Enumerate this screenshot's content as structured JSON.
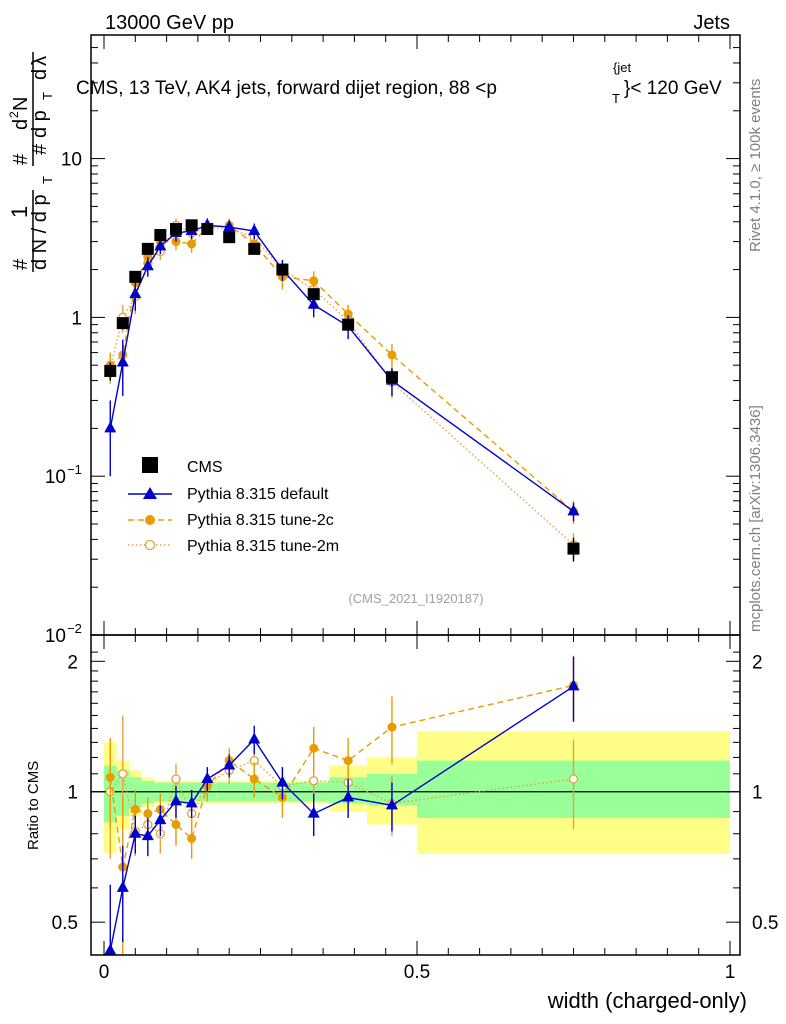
{
  "header": {
    "left": "13000 GeV pp",
    "right": "Jets"
  },
  "side_labels": {
    "rivet": "Rivet 4.1.0, ≥ 100k events",
    "mcplots": "mcplots.cern.ch [arXiv:1306.3436]"
  },
  "colors": {
    "cms": "#000000",
    "default": "#0000cc",
    "tune2c": "#e89c00",
    "tune2m": "#e8a040",
    "band_inner": "#99ff99",
    "band_outer": "#ffff88"
  },
  "chart_data": [
    {
      "type": "scatter",
      "panel": "main",
      "title": "CMS, 13 TeV, AK4 jets, forward dijet region, 88 <p_T^{jet}< 120 GeV",
      "title_parts": {
        "main": "CMS, 13 TeV, AK4 jets, forward dijet region, 88 <p",
        "sub": "T",
        "sup": "{jet",
        "tail": "}< 120 GeV"
      },
      "ylabel": "1/dN/dpT dN²/dpT dλ",
      "ylabel_parts": {
        "hash1": "#",
        "one": "1",
        "dN": "d N / d p",
        "T1": "T",
        "hash2": "#",
        "d2N": "d",
        "two": "2",
        "N": "N",
        "hash3": "#",
        "dpT": "d p",
        "T2": "T",
        "dl": "d",
        "lam": "λ"
      },
      "yscale": "log",
      "ylim": [
        0.01,
        60
      ],
      "xlim": [
        -0.02,
        1.0
      ],
      "yticks": [
        {
          "v": 0.01,
          "label": "10",
          "exp": "−2"
        },
        {
          "v": 0.1,
          "label": "10",
          "exp": "−1"
        },
        {
          "v": 1,
          "label": "1",
          "exp": ""
        },
        {
          "v": 10,
          "label": "10",
          "exp": ""
        }
      ],
      "watermark": "(CMS_2021_I1920187)",
      "legend_position": "lower-left",
      "series": [
        {
          "name": "CMS",
          "marker": "square",
          "x": [
            0.01,
            0.03,
            0.05,
            0.07,
            0.09,
            0.115,
            0.14,
            0.165,
            0.2,
            0.24,
            0.285,
            0.335,
            0.39,
            0.46,
            0.75
          ],
          "y": [
            0.46,
            0.92,
            1.8,
            2.7,
            3.3,
            3.6,
            3.8,
            3.6,
            3.2,
            2.7,
            2.0,
            1.4,
            0.9,
            0.42,
            0.035
          ],
          "yerr": [
            0.06,
            0.08,
            0.1,
            0.1,
            0.1,
            0.1,
            0.1,
            0.1,
            0.1,
            0.1,
            0.1,
            0.08,
            0.06,
            0.05,
            0.006
          ]
        },
        {
          "name": "Pythia 8.315 default",
          "marker": "triangle",
          "x": [
            0.01,
            0.03,
            0.05,
            0.07,
            0.09,
            0.115,
            0.14,
            0.165,
            0.2,
            0.24,
            0.285,
            0.335,
            0.39,
            0.46,
            0.75
          ],
          "y": [
            0.2,
            0.52,
            1.4,
            2.1,
            2.8,
            3.4,
            3.5,
            3.8,
            3.7,
            3.5,
            2.0,
            1.2,
            0.88,
            0.4,
            0.06
          ],
          "yerr": [
            0.1,
            0.2,
            0.3,
            0.3,
            0.3,
            0.4,
            0.4,
            0.4,
            0.4,
            0.4,
            0.3,
            0.2,
            0.15,
            0.08,
            0.008
          ]
        },
        {
          "name": "Pythia 8.315 tune-2c",
          "marker": "circle",
          "x": [
            0.01,
            0.03,
            0.05,
            0.07,
            0.09,
            0.115,
            0.14,
            0.165,
            0.2,
            0.24,
            0.285,
            0.335,
            0.39,
            0.46,
            0.75
          ],
          "y": [
            0.5,
            0.58,
            1.65,
            2.4,
            3.0,
            3.0,
            2.9,
            3.7,
            3.8,
            2.9,
            1.8,
            1.7,
            1.05,
            0.58,
            0.06
          ],
          "yerr": [
            0.1,
            0.15,
            0.3,
            0.3,
            0.3,
            0.35,
            0.35,
            0.4,
            0.4,
            0.35,
            0.3,
            0.25,
            0.15,
            0.1,
            0.01
          ]
        },
        {
          "name": "Pythia 8.315 tune-2m",
          "marker": "open-circle",
          "x": [
            0.01,
            0.03,
            0.05,
            0.07,
            0.09,
            0.115,
            0.14,
            0.165,
            0.2,
            0.24,
            0.285,
            0.335,
            0.39,
            0.46,
            0.75
          ],
          "y": [
            0.48,
            1.0,
            1.35,
            2.2,
            2.6,
            3.8,
            3.4,
            3.7,
            3.6,
            3.2,
            2.0,
            1.5,
            0.95,
            0.39,
            0.037
          ],
          "yerr": [
            0.1,
            0.2,
            0.3,
            0.3,
            0.3,
            0.4,
            0.4,
            0.4,
            0.4,
            0.35,
            0.3,
            0.2,
            0.15,
            0.08,
            0.007
          ]
        }
      ]
    },
    {
      "type": "scatter",
      "panel": "ratio",
      "xlabel": "width (charged-only)",
      "ylabel": "Ratio to CMS",
      "yscale": "log",
      "ylim": [
        0.42,
        2.3
      ],
      "yticks": [
        {
          "v": 0.5,
          "label": "0.5"
        },
        {
          "v": 1,
          "label": "1"
        },
        {
          "v": 2,
          "label": "2"
        }
      ],
      "xticks": [
        {
          "v": 0,
          "label": "0"
        },
        {
          "v": 0.5,
          "label": "0.5"
        },
        {
          "v": 1,
          "label": "1"
        }
      ],
      "bands": {
        "edges": [
          0.0,
          0.02,
          0.04,
          0.06,
          0.08,
          0.1,
          0.13,
          0.15,
          0.18,
          0.22,
          0.26,
          0.31,
          0.36,
          0.42,
          0.5,
          1.0
        ],
        "inner_lo": [
          0.85,
          0.88,
          0.92,
          0.94,
          0.95,
          0.95,
          0.95,
          0.95,
          0.95,
          0.95,
          0.95,
          0.95,
          0.94,
          0.93,
          0.87
        ],
        "inner_hi": [
          1.15,
          1.12,
          1.08,
          1.06,
          1.05,
          1.05,
          1.05,
          1.05,
          1.05,
          1.05,
          1.05,
          1.05,
          1.08,
          1.1,
          1.18
        ],
        "outer_lo": [
          0.72,
          0.82,
          0.88,
          0.92,
          0.94,
          0.94,
          0.94,
          0.94,
          0.94,
          0.94,
          0.94,
          0.94,
          0.9,
          0.84,
          0.72
        ],
        "outer_hi": [
          1.3,
          1.18,
          1.12,
          1.08,
          1.06,
          1.06,
          1.06,
          1.06,
          1.06,
          1.06,
          1.06,
          1.06,
          1.15,
          1.2,
          1.38
        ]
      },
      "series": [
        {
          "name": "Pythia 8.315 default",
          "x": [
            0.01,
            0.03,
            0.05,
            0.07,
            0.09,
            0.115,
            0.14,
            0.165,
            0.2,
            0.24,
            0.285,
            0.335,
            0.39,
            0.46,
            0.75
          ],
          "y": [
            0.43,
            0.6,
            0.8,
            0.79,
            0.86,
            0.95,
            0.94,
            1.07,
            1.15,
            1.32,
            1.05,
            0.89,
            0.97,
            0.93,
            1.75
          ],
          "yerr": [
            0.18,
            0.15,
            0.08,
            0.08,
            0.07,
            0.08,
            0.07,
            0.07,
            0.07,
            0.1,
            0.09,
            0.1,
            0.1,
            0.12,
            0.3
          ]
        },
        {
          "name": "Pythia 8.315 tune-2c",
          "x": [
            0.01,
            0.03,
            0.05,
            0.07,
            0.09,
            0.115,
            0.14,
            0.165,
            0.2,
            0.24,
            0.285,
            0.335,
            0.39,
            0.46,
            0.75
          ],
          "y": [
            1.08,
            0.67,
            0.91,
            0.89,
            0.91,
            0.84,
            0.78,
            1.03,
            1.18,
            1.07,
            0.97,
            1.26,
            1.18,
            1.41,
            1.76
          ],
          "yerr": [
            0.25,
            0.3,
            0.1,
            0.08,
            0.08,
            0.09,
            0.08,
            0.08,
            0.08,
            0.1,
            0.1,
            0.15,
            0.15,
            0.25,
            0.3
          ]
        },
        {
          "name": "Pythia 8.315 tune-2m",
          "x": [
            0.01,
            0.03,
            0.05,
            0.07,
            0.09,
            0.115,
            0.14,
            0.165,
            0.2,
            0.24,
            0.285,
            0.335,
            0.39,
            0.46,
            0.75
          ],
          "y": [
            1.0,
            1.1,
            0.81,
            0.84,
            0.8,
            1.07,
            0.89,
            1.04,
            1.12,
            1.18,
            1.03,
            1.06,
            1.05,
            0.94,
            1.07
          ],
          "yerr": [
            0.3,
            0.4,
            0.1,
            0.08,
            0.08,
            0.09,
            0.08,
            0.08,
            0.08,
            0.1,
            0.1,
            0.12,
            0.12,
            0.15,
            0.25
          ]
        }
      ]
    }
  ]
}
